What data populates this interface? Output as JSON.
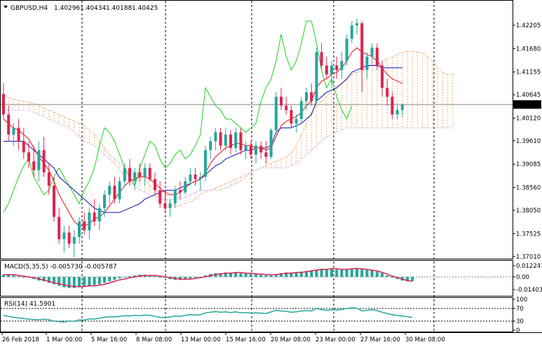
{
  "header": {
    "symbol": "GBPUSD,H4",
    "open": "1.40296",
    "high": "1.40434",
    "low": "1.40188",
    "close": "1.40425"
  },
  "colors": {
    "bull": "#26a69a",
    "bear": "#e0234e",
    "tenkan": "#e01010",
    "kijun": "#1010b0",
    "chikou": "#22cc22",
    "cloud_bear": "#d8b8e0",
    "cloud_bull": "#f0b070",
    "macd_hist": "#26a69a",
    "macd_signal": "#e0234e",
    "rsi": "#26a69a"
  },
  "price_axis": {
    "ticks": [
      "1.42205",
      "1.41680",
      "1.41155",
      "1.40645",
      "1.40120",
      "1.39610",
      "1.39085",
      "1.38560",
      "1.38050",
      "1.37525",
      "1.37010"
    ],
    "current": "1.40425"
  },
  "time_axis": {
    "labels": [
      "26 Feb 2018",
      "1 Mar 00:00",
      "5 Mar 16:00",
      "8 Mar 08:00",
      "13 Mar 00:00",
      "15 Mar 16:00",
      "20 Mar 08:00",
      "23 Mar 00:00",
      "27 Mar 16:00",
      "30 Mar 08:00"
    ]
  },
  "macd": {
    "label": "MACD(5,35,5) -0.005730 -0.005787",
    "ticks": [
      "0.012241",
      "0.00",
      "-0.014037"
    ]
  },
  "rsi": {
    "label": "RSI(14) 41.5901",
    "ticks": [
      "100",
      "70",
      "30",
      "0"
    ]
  },
  "chart_data": {
    "type": "candlestick",
    "symbol": "GBPUSD",
    "timeframe": "H4",
    "ylim": [
      1.37,
      1.425
    ],
    "candles": [
      [
        1.4066,
        1.409,
        1.401,
        1.402
      ],
      [
        1.402,
        1.404,
        1.396,
        1.3975
      ],
      [
        1.3975,
        1.4,
        1.395,
        1.399
      ],
      [
        1.399,
        1.401,
        1.394,
        1.396
      ],
      [
        1.396,
        1.399,
        1.392,
        1.3935
      ],
      [
        1.3935,
        1.396,
        1.39,
        1.3915
      ],
      [
        1.3915,
        1.395,
        1.388,
        1.3895
      ],
      [
        1.3895,
        1.396,
        1.387,
        1.394
      ],
      [
        1.394,
        1.397,
        1.388,
        1.389
      ],
      [
        1.389,
        1.391,
        1.384,
        1.386
      ],
      [
        1.386,
        1.388,
        1.378,
        1.379
      ],
      [
        1.379,
        1.381,
        1.373,
        1.374
      ],
      [
        1.374,
        1.377,
        1.371,
        1.3755
      ],
      [
        1.3755,
        1.377,
        1.372,
        1.373
      ],
      [
        1.373,
        1.376,
        1.37,
        1.3745
      ],
      [
        1.3745,
        1.379,
        1.373,
        1.378
      ],
      [
        1.378,
        1.38,
        1.375,
        1.376
      ],
      [
        1.376,
        1.381,
        1.374,
        1.38
      ],
      [
        1.38,
        1.383,
        1.377,
        1.378
      ],
      [
        1.378,
        1.382,
        1.376,
        1.381
      ],
      [
        1.381,
        1.385,
        1.379,
        1.384
      ],
      [
        1.384,
        1.387,
        1.382,
        1.386
      ],
      [
        1.386,
        1.388,
        1.382,
        1.383
      ],
      [
        1.383,
        1.388,
        1.382,
        1.387
      ],
      [
        1.387,
        1.391,
        1.386,
        1.39
      ],
      [
        1.39,
        1.392,
        1.386,
        1.387
      ],
      [
        1.387,
        1.39,
        1.385,
        1.389
      ],
      [
        1.389,
        1.391,
        1.387,
        1.388
      ],
      [
        1.388,
        1.391,
        1.386,
        1.39
      ],
      [
        1.39,
        1.391,
        1.387,
        1.3875
      ],
      [
        1.3875,
        1.389,
        1.384,
        1.385
      ],
      [
        1.385,
        1.387,
        1.381,
        1.382
      ],
      [
        1.382,
        1.385,
        1.38,
        1.381
      ],
      [
        1.381,
        1.383,
        1.379,
        1.382
      ],
      [
        1.382,
        1.386,
        1.381,
        1.385
      ],
      [
        1.385,
        1.387,
        1.383,
        1.3845
      ],
      [
        1.3845,
        1.388,
        1.384,
        1.387
      ],
      [
        1.387,
        1.39,
        1.386,
        1.3885
      ],
      [
        1.3885,
        1.39,
        1.386,
        1.3875
      ],
      [
        1.3875,
        1.389,
        1.385,
        1.388
      ],
      [
        1.388,
        1.395,
        1.387,
        1.394
      ],
      [
        1.394,
        1.397,
        1.392,
        1.396
      ],
      [
        1.396,
        1.399,
        1.394,
        1.398
      ],
      [
        1.398,
        1.399,
        1.394,
        1.395
      ],
      [
        1.395,
        1.399,
        1.394,
        1.3975
      ],
      [
        1.3975,
        1.3985,
        1.393,
        1.3945
      ],
      [
        1.3945,
        1.399,
        1.3935,
        1.398
      ],
      [
        1.398,
        1.399,
        1.393,
        1.394
      ],
      [
        1.394,
        1.396,
        1.392,
        1.395
      ],
      [
        1.395,
        1.396,
        1.392,
        1.393
      ],
      [
        1.393,
        1.396,
        1.391,
        1.395
      ],
      [
        1.395,
        1.396,
        1.392,
        1.3935
      ],
      [
        1.3935,
        1.396,
        1.391,
        1.3925
      ],
      [
        1.3925,
        1.399,
        1.392,
        1.3985
      ],
      [
        1.3985,
        1.407,
        1.3975,
        1.406
      ],
      [
        1.406,
        1.408,
        1.403,
        1.404
      ],
      [
        1.404,
        1.406,
        1.402,
        1.403
      ],
      [
        1.403,
        1.404,
        1.399,
        1.4
      ],
      [
        1.4,
        1.402,
        1.398,
        1.401
      ],
      [
        1.401,
        1.406,
        1.4,
        1.405
      ],
      [
        1.405,
        1.408,
        1.403,
        1.407
      ],
      [
        1.407,
        1.409,
        1.404,
        1.405
      ],
      [
        1.405,
        1.417,
        1.4045,
        1.416
      ],
      [
        1.416,
        1.418,
        1.412,
        1.413
      ],
      [
        1.413,
        1.415,
        1.41,
        1.411
      ],
      [
        1.411,
        1.414,
        1.408,
        1.413
      ],
      [
        1.413,
        1.415,
        1.41,
        1.412
      ],
      [
        1.412,
        1.416,
        1.41,
        1.414
      ],
      [
        1.414,
        1.42,
        1.413,
        1.419
      ],
      [
        1.419,
        1.423,
        1.418,
        1.422
      ],
      [
        1.422,
        1.4235,
        1.42,
        1.4225
      ],
      [
        1.4225,
        1.423,
        1.407,
        1.412
      ],
      [
        1.412,
        1.416,
        1.41,
        1.415
      ],
      [
        1.415,
        1.418,
        1.413,
        1.417
      ],
      [
        1.417,
        1.418,
        1.412,
        1.413
      ],
      [
        1.413,
        1.414,
        1.406,
        1.408
      ],
      [
        1.408,
        1.41,
        1.404,
        1.406
      ],
      [
        1.406,
        1.407,
        1.401,
        1.402
      ],
      [
        1.402,
        1.404,
        1.401,
        1.403
      ],
      [
        1.403,
        1.4045,
        1.4015,
        1.4042
      ]
    ],
    "tenkan": [
      1.401,
      1.4,
      1.399,
      1.3985,
      1.3975,
      1.3965,
      1.3945,
      1.3925,
      1.391,
      1.3895,
      1.387,
      1.384,
      1.382,
      1.38,
      1.378,
      1.377,
      1.377,
      1.3775,
      1.3785,
      1.379,
      1.38,
      1.3815,
      1.383,
      1.3845,
      1.386,
      1.387,
      1.3875,
      1.388,
      1.388,
      1.3875,
      1.3865,
      1.3855,
      1.3845,
      1.384,
      1.384,
      1.3845,
      1.3855,
      1.3865,
      1.387,
      1.3875,
      1.389,
      1.391,
      1.3925,
      1.3935,
      1.3945,
      1.395,
      1.3955,
      1.3955,
      1.395,
      1.395,
      1.3945,
      1.3945,
      1.394,
      1.3945,
      1.397,
      1.3995,
      1.4005,
      1.401,
      1.4015,
      1.4025,
      1.404,
      1.405,
      1.408,
      1.4095,
      1.41,
      1.411,
      1.4115,
      1.4125,
      1.414,
      1.416,
      1.417,
      1.416,
      1.4155,
      1.415,
      1.414,
      1.4125,
      1.411,
      1.41,
      1.4095,
      1.409
    ],
    "kijun": [
      1.396,
      1.396,
      1.396,
      1.396,
      1.396,
      1.395,
      1.394,
      1.393,
      1.392,
      1.391,
      1.39,
      1.388,
      1.387,
      1.386,
      1.385,
      1.384,
      1.383,
      1.382,
      1.381,
      1.3805,
      1.38,
      1.38,
      1.38,
      1.38,
      1.3805,
      1.381,
      1.3815,
      1.382,
      1.383,
      1.3835,
      1.384,
      1.3845,
      1.385,
      1.385,
      1.385,
      1.3855,
      1.386,
      1.3865,
      1.387,
      1.3875,
      1.3885,
      1.3895,
      1.3905,
      1.391,
      1.392,
      1.3925,
      1.393,
      1.3935,
      1.394,
      1.394,
      1.3945,
      1.3945,
      1.3945,
      1.395,
      1.398,
      1.399,
      1.399,
      1.399,
      1.3995,
      1.4,
      1.401,
      1.402,
      1.405,
      1.406,
      1.407,
      1.4075,
      1.408,
      1.409,
      1.41,
      1.4115,
      1.412,
      1.4125,
      1.413,
      1.413,
      1.413,
      1.4125,
      1.4125,
      1.4125,
      1.4125,
      1.4125
    ],
    "chikou": [
      1.38,
      1.382,
      1.385,
      1.388,
      1.3905,
      1.392,
      1.388,
      1.386,
      1.384,
      1.385,
      1.388,
      1.39,
      1.388,
      1.386,
      1.384,
      1.382,
      1.385,
      1.387,
      1.39,
      1.395,
      1.399,
      1.398,
      1.396,
      1.393,
      1.39,
      1.388,
      1.386,
      1.39,
      1.393,
      1.396,
      1.395,
      1.392,
      1.39,
      1.391,
      1.393,
      1.394,
      1.392,
      1.393,
      1.395,
      1.3975,
      1.408,
      1.406,
      1.404,
      1.403,
      1.401,
      1.401,
      1.4,
      1.399,
      1.398,
      1.399,
      1.4,
      1.405,
      1.408,
      1.41,
      1.414,
      1.42,
      1.415,
      1.412,
      1.414,
      1.418,
      1.423,
      1.423,
      1.418,
      1.412,
      1.408,
      1.41,
      1.406,
      1.403,
      1.401,
      1.404
    ],
    "span_a": [
      1.406,
      1.4058,
      1.4055,
      1.4052,
      1.405,
      1.4048,
      1.4045,
      1.404,
      1.4035,
      1.403,
      1.4025,
      1.402,
      1.4015,
      1.401,
      1.4005,
      1.4,
      1.3995,
      1.3985,
      1.3975,
      1.396,
      1.3945,
      1.393,
      1.392,
      1.391,
      1.39,
      1.3895,
      1.389,
      1.3885,
      1.3875,
      1.386,
      1.385,
      1.384,
      1.383,
      1.382,
      1.3815,
      1.3815,
      1.382,
      1.3825,
      1.383,
      1.384,
      1.3845,
      1.385,
      1.3855,
      1.386,
      1.3865,
      1.387,
      1.3875,
      1.388,
      1.3885,
      1.389,
      1.3895,
      1.39,
      1.3905,
      1.391,
      1.3915,
      1.392,
      1.3925,
      1.3935,
      1.395,
      1.3975,
      1.4,
      1.4025,
      1.404,
      1.405,
      1.406,
      1.4075,
      1.4085,
      1.409,
      1.41,
      1.411,
      1.4115,
      1.412,
      1.4125,
      1.413,
      1.4135,
      1.414,
      1.4145,
      1.415,
      1.4155,
      1.416,
      1.4162,
      1.4162,
      1.416,
      1.4158,
      1.415,
      1.414,
      1.4125,
      1.4115,
      1.411,
      1.411
    ],
    "span_b": [
      1.403,
      1.403,
      1.403,
      1.403,
      1.403,
      1.403,
      1.4025,
      1.402,
      1.4015,
      1.401,
      1.4005,
      1.4,
      1.3995,
      1.399,
      1.398,
      1.397,
      1.396,
      1.3955,
      1.395,
      1.394,
      1.393,
      1.392,
      1.391,
      1.3895,
      1.388,
      1.387,
      1.386,
      1.385,
      1.3845,
      1.384,
      1.3835,
      1.383,
      1.383,
      1.383,
      1.383,
      1.383,
      1.3835,
      1.384,
      1.3845,
      1.385,
      1.385,
      1.385,
      1.385,
      1.385,
      1.3855,
      1.386,
      1.3865,
      1.387,
      1.388,
      1.389,
      1.3895,
      1.39,
      1.39,
      1.39,
      1.39,
      1.39,
      1.39,
      1.3905,
      1.391,
      1.392,
      1.393,
      1.394,
      1.395,
      1.396,
      1.397,
      1.3975,
      1.398,
      1.3985,
      1.399,
      1.399,
      1.399,
      1.399,
      1.399,
      1.399,
      1.399,
      1.399,
      1.399,
      1.399,
      1.399,
      1.399,
      1.399,
      1.399,
      1.399,
      1.399,
      1.399,
      1.399,
      1.399,
      1.399,
      1.399,
      1.399
    ],
    "macd_hist": [
      0.003,
      0.003,
      0.002,
      0.001,
      0.0,
      -0.001,
      -0.003,
      -0.005,
      -0.006,
      -0.008,
      -0.01,
      -0.012,
      -0.014,
      -0.015,
      -0.015,
      -0.014,
      -0.013,
      -0.012,
      -0.011,
      -0.01,
      -0.008,
      -0.006,
      -0.004,
      -0.002,
      -0.001,
      0.001,
      0.002,
      0.003,
      0.003,
      0.002,
      0.001,
      0.0,
      -0.001,
      -0.003,
      -0.004,
      -0.004,
      -0.003,
      -0.002,
      -0.001,
      0.0,
      0.002,
      0.004,
      0.005,
      0.005,
      0.006,
      0.006,
      0.006,
      0.005,
      0.005,
      0.004,
      0.004,
      0.003,
      0.002,
      0.002,
      0.003,
      0.005,
      0.006,
      0.006,
      0.006,
      0.007,
      0.008,
      0.009,
      0.01,
      0.011,
      0.011,
      0.011,
      0.01,
      0.01,
      0.01,
      0.011,
      0.012,
      0.011,
      0.01,
      0.009,
      0.007,
      0.005,
      0.002,
      -0.001,
      -0.003,
      -0.005,
      -0.006,
      -0.0057
    ],
    "macd_signal": [
      0.003,
      0.003,
      0.003,
      0.002,
      0.001,
      0.0,
      -0.001,
      -0.003,
      -0.004,
      -0.006,
      -0.008,
      -0.009,
      -0.011,
      -0.012,
      -0.013,
      -0.013,
      -0.013,
      -0.012,
      -0.012,
      -0.011,
      -0.01,
      -0.008,
      -0.006,
      -0.004,
      -0.003,
      -0.001,
      0.0,
      0.001,
      0.002,
      0.002,
      0.002,
      0.001,
      0.0,
      -0.001,
      -0.002,
      -0.003,
      -0.003,
      -0.003,
      -0.002,
      -0.001,
      0.0,
      0.002,
      0.003,
      0.004,
      0.005,
      0.005,
      0.006,
      0.006,
      0.005,
      0.005,
      0.004,
      0.004,
      0.003,
      0.003,
      0.003,
      0.004,
      0.005,
      0.005,
      0.006,
      0.006,
      0.007,
      0.008,
      0.009,
      0.01,
      0.01,
      0.011,
      0.011,
      0.01,
      0.01,
      0.011,
      0.011,
      0.011,
      0.01,
      0.009,
      0.008,
      0.006,
      0.004,
      0.001,
      -0.001,
      -0.003,
      -0.005,
      -0.0058
    ],
    "rsi": [
      48,
      45,
      42,
      40,
      38,
      36,
      35,
      34,
      36,
      34,
      30,
      28,
      27,
      30,
      29,
      34,
      33,
      37,
      36,
      39,
      42,
      44,
      43,
      45,
      47,
      46,
      48,
      47,
      49,
      48,
      45,
      42,
      41,
      43,
      46,
      45,
      48,
      50,
      49,
      50,
      56,
      58,
      60,
      58,
      59,
      57,
      59,
      56,
      57,
      55,
      56,
      55,
      54,
      59,
      64,
      62,
      61,
      58,
      59,
      62,
      63,
      62,
      70,
      66,
      64,
      66,
      65,
      67,
      70,
      72,
      71,
      62,
      64,
      66,
      63,
      58,
      54,
      50,
      48,
      46,
      44,
      41.59
    ]
  }
}
